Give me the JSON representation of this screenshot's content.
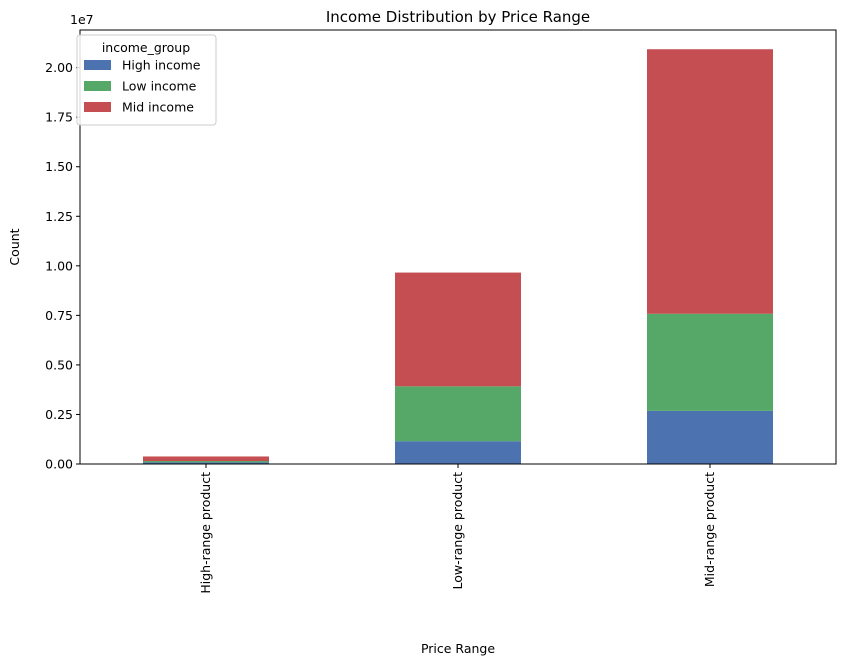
{
  "chart_data": {
    "type": "bar",
    "stacked": true,
    "title": "Income Distribution by Price Range",
    "xlabel": "Price Range",
    "ylabel": "Count",
    "y_offset_label": "1e7",
    "categories": [
      "High-range product",
      "Low-range product",
      "Mid-range product"
    ],
    "series": [
      {
        "name": "High income",
        "color": "#4c72b0",
        "values": [
          80000,
          1150000,
          2680000
        ]
      },
      {
        "name": "Low income",
        "color": "#55a868",
        "values": [
          70000,
          2770000,
          4900000
        ]
      },
      {
        "name": "Mid income",
        "color": "#c44e52",
        "values": [
          230000,
          5740000,
          13350000
        ]
      }
    ],
    "ylim": [
      0,
      21900000
    ],
    "yticks": [
      0,
      2500000,
      5000000,
      7500000,
      10000000,
      12500000,
      15000000,
      17500000,
      20000000
    ],
    "ytick_labels": [
      "0.00",
      "0.25",
      "0.50",
      "0.75",
      "1.00",
      "1.25",
      "1.50",
      "1.75",
      "2.00"
    ],
    "legend": {
      "title": "income_group",
      "placement": "top-left"
    },
    "grid": false
  }
}
